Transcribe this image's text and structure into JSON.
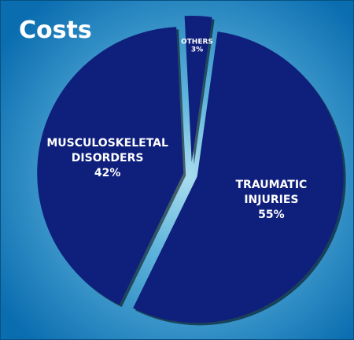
{
  "chart_data": {
    "type": "pie",
    "title": "Costs",
    "slices": [
      {
        "label_lines": [
          "TRAUMATIC",
          "INJURIES"
        ],
        "value_label": "55%",
        "value": 55
      },
      {
        "label_lines": [
          "MUSCULOSKELETAL",
          "DISORDERS"
        ],
        "value_label": "42%",
        "value": 42
      },
      {
        "label_lines": [
          "OTHERS"
        ],
        "value_label": "3%",
        "value": 3
      }
    ],
    "exploded": true,
    "colors": {
      "slice": "#0f1f7c",
      "background_center": "#a8dcee",
      "background_edge": "#0a6db0",
      "text": "#ffffff",
      "border": "#06507f"
    }
  }
}
